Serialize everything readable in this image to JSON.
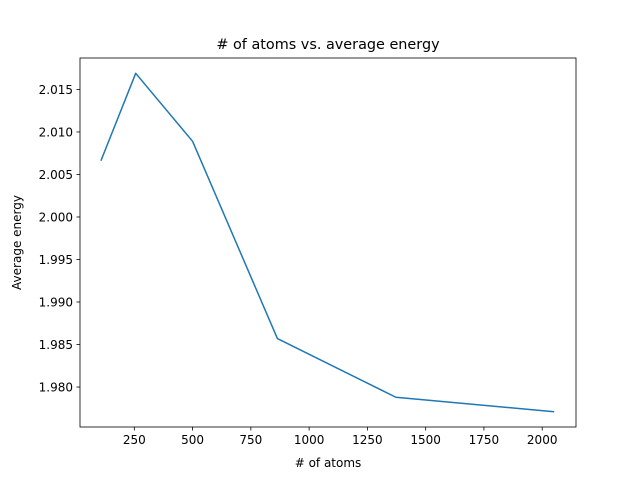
{
  "chart_data": {
    "type": "line",
    "title": "# of atoms vs. average energy",
    "xlabel": "# of atoms",
    "ylabel": "Average energy",
    "xlim": [
      17,
      2145
    ],
    "ylim": [
      1.9753,
      2.0187
    ],
    "x_ticks": [
      250,
      500,
      750,
      1000,
      1250,
      1500,
      1750,
      2000
    ],
    "x_tick_labels": [
      "250",
      "500",
      "750",
      "1000",
      "1250",
      "1500",
      "1750",
      "2000"
    ],
    "y_ticks": [
      1.98,
      1.985,
      1.99,
      1.995,
      2.0,
      2.005,
      2.01,
      2.015
    ],
    "y_tick_labels": [
      "1.980",
      "1.985",
      "1.990",
      "1.995",
      "2.000",
      "2.005",
      "2.010",
      "2.015"
    ],
    "grid": false,
    "series": [
      {
        "color": "#1f77b4",
        "x": [
          108,
          256,
          500,
          864,
          1372,
          2048
        ],
        "y": [
          2.0067,
          2.0169,
          2.0089,
          1.9857,
          1.9788,
          1.9771
        ]
      }
    ]
  }
}
